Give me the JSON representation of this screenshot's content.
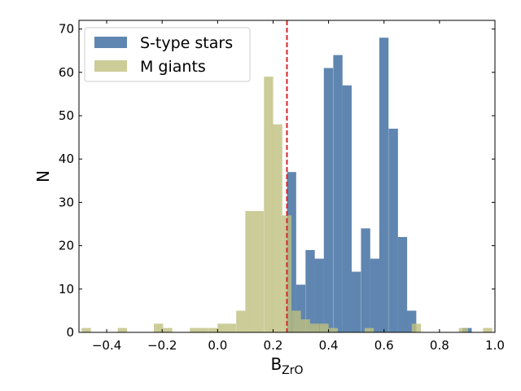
{
  "chart_data": {
    "type": "histogram",
    "xlabel": "B",
    "xlabel_subscript": "ZrO",
    "ylabel": "N",
    "xlim": [
      -0.5,
      1.0
    ],
    "ylim": [
      0,
      72
    ],
    "xticks": [
      -0.4,
      -0.2,
      0.0,
      0.2,
      0.4,
      0.6,
      0.8,
      1.0
    ],
    "xtick_labels": [
      "−0.4",
      "−0.2",
      "0.0",
      "0.2",
      "0.4",
      "0.6",
      "0.8",
      "1.0"
    ],
    "yticks": [
      0,
      10,
      20,
      30,
      40,
      50,
      60,
      70
    ],
    "ytick_labels": [
      "0",
      "10",
      "20",
      "30",
      "40",
      "50",
      "60",
      "70"
    ],
    "bin_width": 0.0333,
    "reference_line": {
      "x": 0.25,
      "color": "#d62728",
      "style": "dashed"
    },
    "legend_position": "upper-left",
    "series": [
      {
        "name": "S-type stars",
        "color": "#4e79a7",
        "opacity": 0.9,
        "bins": [
          {
            "x0": 0.25,
            "count": 37
          },
          {
            "x0": 0.283,
            "count": 11
          },
          {
            "x0": 0.317,
            "count": 19
          },
          {
            "x0": 0.35,
            "count": 17
          },
          {
            "x0": 0.383,
            "count": 61
          },
          {
            "x0": 0.417,
            "count": 64
          },
          {
            "x0": 0.45,
            "count": 57
          },
          {
            "x0": 0.483,
            "count": 14
          },
          {
            "x0": 0.517,
            "count": 24
          },
          {
            "x0": 0.55,
            "count": 17
          },
          {
            "x0": 0.583,
            "count": 68
          },
          {
            "x0": 0.617,
            "count": 47
          },
          {
            "x0": 0.65,
            "count": 22
          },
          {
            "x0": 0.683,
            "count": 5
          },
          {
            "x0": 0.883,
            "count": 1
          }
        ]
      },
      {
        "name": "M giants",
        "color": "#bfbf7f",
        "opacity": 0.8,
        "bins": [
          {
            "x0": -0.49,
            "count": 1
          },
          {
            "x0": -0.36,
            "count": 1
          },
          {
            "x0": -0.23,
            "count": 2
          },
          {
            "x0": -0.197,
            "count": 1
          },
          {
            "x0": -0.1,
            "count": 1
          },
          {
            "x0": -0.067,
            "count": 1
          },
          {
            "x0": -0.033,
            "count": 1
          },
          {
            "x0": -0.0,
            "count": 2
          },
          {
            "x0": 0.033,
            "count": 2
          },
          {
            "x0": 0.067,
            "count": 5
          },
          {
            "x0": 0.1,
            "count": 28
          },
          {
            "x0": 0.133,
            "count": 28
          },
          {
            "x0": 0.167,
            "count": 59
          },
          {
            "x0": 0.2,
            "count": 48
          },
          {
            "x0": 0.233,
            "count": 27
          },
          {
            "x0": 0.267,
            "count": 5
          },
          {
            "x0": 0.3,
            "count": 3
          },
          {
            "x0": 0.333,
            "count": 2
          },
          {
            "x0": 0.367,
            "count": 2
          },
          {
            "x0": 0.4,
            "count": 1
          },
          {
            "x0": 0.53,
            "count": 1
          },
          {
            "x0": 0.7,
            "count": 2
          },
          {
            "x0": 0.87,
            "count": 1
          },
          {
            "x0": 0.957,
            "count": 1
          }
        ]
      }
    ]
  }
}
